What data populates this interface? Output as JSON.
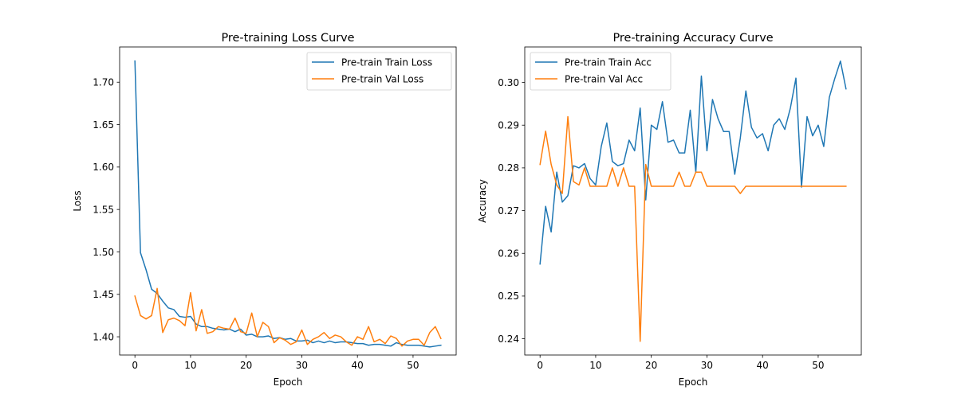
{
  "chart_data": [
    {
      "type": "line",
      "title": "Pre-training Loss Curve",
      "xlabel": "Epoch",
      "ylabel": "Loss",
      "xlim": [
        -2.75,
        57.75
      ],
      "ylim": [
        1.3785,
        1.7415
      ],
      "xticks": [
        0,
        10,
        20,
        30,
        40,
        50
      ],
      "xtick_labels": [
        "0",
        "10",
        "20",
        "30",
        "40",
        "50"
      ],
      "yticks": [
        1.4,
        1.45,
        1.5,
        1.55,
        1.6,
        1.65,
        1.7
      ],
      "ytick_labels": [
        "1.40",
        "1.45",
        "1.50",
        "1.55",
        "1.60",
        "1.65",
        "1.70"
      ],
      "legend_position": "top-right",
      "grid": false,
      "series": [
        {
          "name": "Pre-train Train Loss",
          "color": "#1f77b4",
          "values": [
            1.725,
            1.499,
            1.479,
            1.456,
            1.451,
            1.442,
            1.434,
            1.432,
            1.424,
            1.423,
            1.424,
            1.415,
            1.412,
            1.412,
            1.41,
            1.409,
            1.408,
            1.409,
            1.406,
            1.409,
            1.402,
            1.403,
            1.4,
            1.4,
            1.401,
            1.398,
            1.399,
            1.397,
            1.398,
            1.395,
            1.395,
            1.396,
            1.393,
            1.395,
            1.393,
            1.395,
            1.393,
            1.394,
            1.394,
            1.393,
            1.392,
            1.392,
            1.39,
            1.391,
            1.391,
            1.39,
            1.389,
            1.393,
            1.391,
            1.39,
            1.39,
            1.39,
            1.389,
            1.388,
            1.389,
            1.39
          ]
        },
        {
          "name": "Pre-train Val Loss",
          "color": "#ff7f0e",
          "values": [
            1.448,
            1.425,
            1.421,
            1.425,
            1.457,
            1.405,
            1.42,
            1.422,
            1.419,
            1.413,
            1.452,
            1.407,
            1.432,
            1.404,
            1.406,
            1.412,
            1.41,
            1.409,
            1.422,
            1.406,
            1.404,
            1.428,
            1.4,
            1.417,
            1.412,
            1.393,
            1.399,
            1.396,
            1.391,
            1.394,
            1.408,
            1.391,
            1.397,
            1.4,
            1.405,
            1.398,
            1.402,
            1.4,
            1.394,
            1.39,
            1.4,
            1.397,
            1.412,
            1.394,
            1.397,
            1.392,
            1.401,
            1.398,
            1.389,
            1.395,
            1.397,
            1.397,
            1.39,
            1.405,
            1.412,
            1.398
          ]
        }
      ]
    },
    {
      "type": "line",
      "title": "Pre-training Accuracy Curve",
      "xlabel": "Epoch",
      "ylabel": "Accuracy",
      "xlim": [
        -2.75,
        57.75
      ],
      "ylim": [
        0.2362,
        0.3083
      ],
      "xticks": [
        0,
        10,
        20,
        30,
        40,
        50
      ],
      "xtick_labels": [
        "0",
        "10",
        "20",
        "30",
        "40",
        "50"
      ],
      "yticks": [
        0.24,
        0.25,
        0.26,
        0.27,
        0.28,
        0.29,
        0.3
      ],
      "ytick_labels": [
        "0.24",
        "0.25",
        "0.26",
        "0.27",
        "0.28",
        "0.29",
        "0.30"
      ],
      "legend_position": "top-left",
      "grid": false,
      "series": [
        {
          "name": "Pre-train Train Acc",
          "color": "#1f77b4",
          "values": [
            0.2575,
            0.271,
            0.265,
            0.279,
            0.272,
            0.2735,
            0.2805,
            0.28,
            0.281,
            0.2775,
            0.276,
            0.285,
            0.2905,
            0.2815,
            0.2805,
            0.281,
            0.2865,
            0.284,
            0.294,
            0.2725,
            0.29,
            0.289,
            0.2955,
            0.286,
            0.2865,
            0.2835,
            0.2835,
            0.2935,
            0.279,
            0.3015,
            0.284,
            0.296,
            0.2915,
            0.2885,
            0.2885,
            0.2785,
            0.287,
            0.298,
            0.2895,
            0.287,
            0.288,
            0.284,
            0.29,
            0.2915,
            0.289,
            0.294,
            0.301,
            0.2755,
            0.292,
            0.2875,
            0.29,
            0.285,
            0.2965,
            0.301,
            0.305,
            0.2985
          ]
        },
        {
          "name": "Pre-train Val Acc",
          "color": "#ff7f0e",
          "values": [
            0.2808,
            0.2886,
            0.2808,
            0.276,
            0.274,
            0.292,
            0.2768,
            0.276,
            0.28,
            0.2757,
            0.2757,
            0.2757,
            0.2757,
            0.28,
            0.2757,
            0.28,
            0.2757,
            0.2757,
            0.2394,
            0.2808,
            0.2757,
            0.2757,
            0.2757,
            0.2757,
            0.2757,
            0.279,
            0.2757,
            0.2757,
            0.279,
            0.279,
            0.2757,
            0.2757,
            0.2757,
            0.2757,
            0.2757,
            0.2757,
            0.274,
            0.2757,
            0.2757,
            0.2757,
            0.2757,
            0.2757,
            0.2757,
            0.2757,
            0.2757,
            0.2757,
            0.2757,
            0.2757,
            0.2757,
            0.2757,
            0.2757,
            0.2757,
            0.2757,
            0.2757,
            0.2757,
            0.2757
          ]
        }
      ]
    }
  ]
}
